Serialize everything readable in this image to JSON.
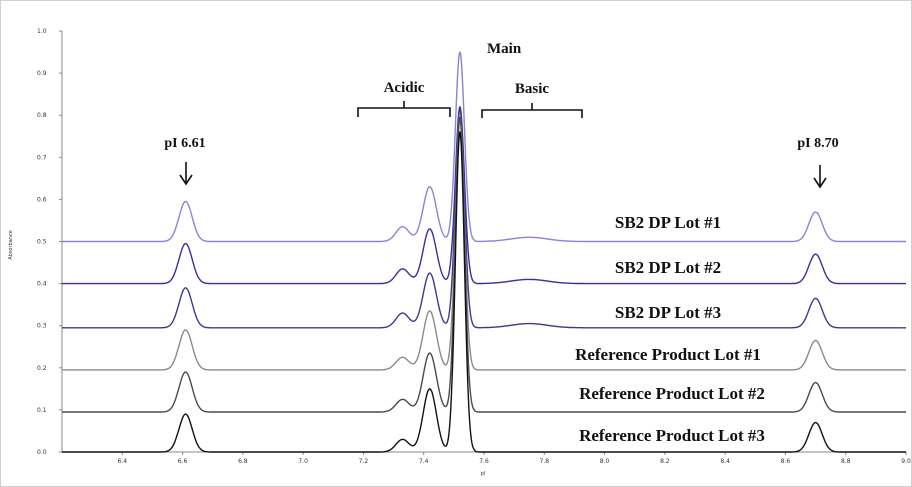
{
  "chart_data": {
    "type": "line",
    "xlabel": "pI",
    "ylabel": "Absorbance",
    "xlim": [
      6.2,
      9.0
    ],
    "ylim": [
      0.0,
      1.0
    ],
    "x_ticks": [
      "6.4",
      "6.6",
      "6.8",
      "7.0",
      "7.2",
      "7.4",
      "7.6",
      "7.8",
      "8.0",
      "8.2",
      "8.4",
      "8.6",
      "8.8",
      "9.0"
    ],
    "y_ticks": [
      "0.0",
      "0.1",
      "0.2",
      "0.3",
      "0.4",
      "0.5",
      "0.6",
      "0.7",
      "0.8",
      "0.9",
      "1.0"
    ],
    "grid": false,
    "annotations": {
      "main": "Main",
      "acidic": "Acidic",
      "basic": "Basic",
      "pi_low": "pI 6.61",
      "pi_high": "pI 8.70"
    },
    "series": [
      {
        "name": "SB2 DP Lot #1",
        "color": "#8a84d6",
        "baseline": 0.5,
        "peaks": [
          [
            6.61,
            0.095
          ],
          [
            7.33,
            0.035
          ],
          [
            7.42,
            0.13
          ],
          [
            7.52,
            0.45
          ],
          [
            7.75,
            0.01
          ],
          [
            8.7,
            0.07
          ]
        ]
      },
      {
        "name": "SB2 DP Lot #2",
        "color": "#3a2f9e",
        "baseline": 0.4,
        "peaks": [
          [
            6.61,
            0.095
          ],
          [
            7.33,
            0.035
          ],
          [
            7.42,
            0.13
          ],
          [
            7.52,
            0.42
          ],
          [
            7.75,
            0.01
          ],
          [
            8.7,
            0.07
          ]
        ]
      },
      {
        "name": "SB2 DP Lot #3",
        "color": "#3c3a8c",
        "baseline": 0.295,
        "peaks": [
          [
            6.61,
            0.095
          ],
          [
            7.33,
            0.035
          ],
          [
            7.42,
            0.13
          ],
          [
            7.52,
            0.52
          ],
          [
            7.75,
            0.01
          ],
          [
            8.7,
            0.07
          ]
        ]
      },
      {
        "name": "Reference Product Lot #1",
        "color": "#8a8a8a",
        "baseline": 0.195,
        "peaks": [
          [
            6.61,
            0.095
          ],
          [
            7.33,
            0.03
          ],
          [
            7.42,
            0.14
          ],
          [
            7.52,
            0.6
          ],
          [
            8.7,
            0.07
          ]
        ]
      },
      {
        "name": "Reference Product Lot #2",
        "color": "#4a4a4a",
        "baseline": 0.095,
        "peaks": [
          [
            6.61,
            0.095
          ],
          [
            7.33,
            0.03
          ],
          [
            7.42,
            0.14
          ],
          [
            7.52,
            0.7
          ],
          [
            8.7,
            0.07
          ]
        ]
      },
      {
        "name": "Reference Product Lot #3",
        "color": "#111111",
        "baseline": 0.0,
        "peaks": [
          [
            6.61,
            0.09
          ],
          [
            7.33,
            0.03
          ],
          [
            7.42,
            0.15
          ],
          [
            7.52,
            0.76
          ],
          [
            8.7,
            0.07
          ]
        ]
      }
    ]
  }
}
